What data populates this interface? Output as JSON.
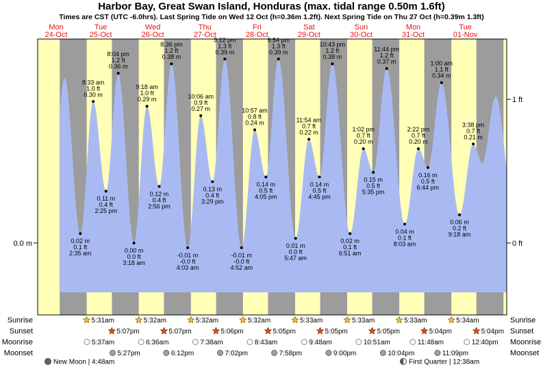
{
  "title": "Harbor Bay, Great Swan Island, Honduras (max. tidal range 0.50m 1.6ft)",
  "subtitle": "Times are CST (UTC -6.0hrs). Last Spring Tide on Wed 12 Oct (h=0.36m 1.2ft). Next Spring Tide on Thu 27 Oct (h=0.39m 1.3ft)",
  "axis": {
    "left_label": "0.0 m",
    "right_top_label": "1 ft",
    "right_bottom_label": "0 ft"
  },
  "colors": {
    "day": "#ffffb8",
    "night": "#9c9c9c",
    "tide": "#a9baf3",
    "day_label": "#e81010"
  },
  "chart_data": {
    "type": "area",
    "title": "Harbor Bay, Great Swan Island, Honduras (max. tidal range 0.50m 1.6ft)",
    "x_unit": "hours since Mon 24-Oct 00:00 CST",
    "x_range_hours": [
      6.95,
      223.06
    ],
    "ylim_m": [
      -0.105,
      0.432
    ],
    "ylabel_left": "m",
    "ylabel_right": "ft",
    "legend": false,
    "day_labels": [
      {
        "dow": "Mon",
        "date": "24-Oct"
      },
      {
        "dow": "Tue",
        "date": "25-Oct"
      },
      {
        "dow": "Wed",
        "date": "26-Oct"
      },
      {
        "dow": "Thu",
        "date": "27-Oct"
      },
      {
        "dow": "Fri",
        "date": "28-Oct"
      },
      {
        "dow": "Sat",
        "date": "29-Oct"
      },
      {
        "dow": "Sun",
        "date": "30-Oct"
      },
      {
        "dow": "Mon",
        "date": "31-Oct"
      },
      {
        "dow": "Tue",
        "date": "01-Nov"
      }
    ],
    "daylight_hours": [
      [
        6.95,
        17.117
      ],
      [
        29.517,
        41.117
      ],
      [
        53.533,
        65.117
      ],
      [
        77.533,
        89.1
      ],
      [
        101.533,
        113.083
      ],
      [
        125.55,
        137.083
      ],
      [
        149.55,
        161.083
      ],
      [
        173.55,
        185.067
      ],
      [
        197.567,
        209.067
      ],
      [
        221.567,
        223.06
      ]
    ],
    "extremes": [
      {
        "t": 13.5,
        "m": 0.1,
        "type": "low",
        "annotated": false
      },
      {
        "t": 19.33,
        "m": 0.35,
        "type": "high",
        "annotated": false
      },
      {
        "t": 26.583,
        "m": 0.02,
        "type": "low",
        "day": "Tue 25-Oct",
        "lines": [
          "0.02 m",
          "0.1 ft",
          "2:35 am"
        ]
      },
      {
        "t": 32.55,
        "m": 0.3,
        "type": "high",
        "day": "Tue 25-Oct",
        "lines": [
          "8:33 am",
          "1.0 ft",
          "0.30 m"
        ]
      },
      {
        "t": 38.417,
        "m": 0.11,
        "type": "low",
        "day": "Tue 25-Oct",
        "lines": [
          "0.11 m",
          "0.4 ft",
          "2:25 pm"
        ]
      },
      {
        "t": 44.067,
        "m": 0.36,
        "type": "high",
        "day": "Tue 25-Oct",
        "lines": [
          "8:04 pm",
          "1.2 ft",
          "0.36 m"
        ]
      },
      {
        "t": 51.3,
        "m": 0.0,
        "type": "low",
        "day": "Wed 26-Oct",
        "lines": [
          "0.00 m",
          "0.0 ft",
          "3:18 am"
        ]
      },
      {
        "t": 57.3,
        "m": 0.29,
        "type": "high",
        "day": "Wed 26-Oct",
        "lines": [
          "9:18 am",
          "1.0 ft",
          "0.29 m"
        ]
      },
      {
        "t": 62.933,
        "m": 0.12,
        "type": "low",
        "day": "Wed 26-Oct",
        "lines": [
          "0.12 m",
          "0.4 ft",
          "2:56 pm"
        ]
      },
      {
        "t": 68.6,
        "m": 0.38,
        "type": "high",
        "day": "Wed 26-Oct",
        "lines": [
          "8:36 pm",
          "1.2 ft",
          "0.38 m"
        ]
      },
      {
        "t": 76.05,
        "m": -0.01,
        "type": "low",
        "day": "Thu 27-Oct",
        "lines": [
          "-0.01 m",
          "-0.0 ft",
          "4:03 am"
        ]
      },
      {
        "t": 82.1,
        "m": 0.27,
        "type": "high",
        "day": "Thu 27-Oct",
        "lines": [
          "10:06 am",
          "0.9 ft",
          "0.27 m"
        ]
      },
      {
        "t": 87.483,
        "m": 0.13,
        "type": "low",
        "day": "Thu 27-Oct",
        "lines": [
          "0.13 m",
          "0.4 ft",
          "3:29 pm"
        ]
      },
      {
        "t": 93.2,
        "m": 0.39,
        "type": "high",
        "day": "Thu 27-Oct",
        "lines": [
          "9:12 pm",
          "1.3 ft",
          "0.39 m"
        ]
      },
      {
        "t": 100.867,
        "m": -0.01,
        "type": "low",
        "day": "Fri 28-Oct",
        "lines": [
          "-0.01 m",
          "-0.0 ft",
          "4:52 am"
        ]
      },
      {
        "t": 106.95,
        "m": 0.24,
        "type": "high",
        "day": "Fri 28-Oct",
        "lines": [
          "10:57 am",
          "0.8 ft",
          "0.24 m"
        ]
      },
      {
        "t": 112.083,
        "m": 0.14,
        "type": "low",
        "day": "Fri 28-Oct",
        "lines": [
          "0.14 m",
          "0.5 ft",
          "4:05 pm"
        ]
      },
      {
        "t": 117.9,
        "m": 0.39,
        "type": "high",
        "day": "Fri 28-Oct",
        "lines": [
          "9:54 pm",
          "1.3 ft",
          "0.39 m"
        ]
      },
      {
        "t": 125.783,
        "m": 0.01,
        "type": "low",
        "day": "Sat 29-Oct",
        "lines": [
          "0.01 m",
          "0.0 ft",
          "5:47 am"
        ]
      },
      {
        "t": 131.9,
        "m": 0.22,
        "type": "high",
        "day": "Sat 29-Oct",
        "lines": [
          "11:54 am",
          "0.7 ft",
          "0.22 m"
        ]
      },
      {
        "t": 136.75,
        "m": 0.14,
        "type": "low",
        "day": "Sat 29-Oct",
        "lines": [
          "0.14 m",
          "0.5 ft",
          "4:45 pm"
        ]
      },
      {
        "t": 142.717,
        "m": 0.38,
        "type": "high",
        "day": "Sat 29-Oct",
        "lines": [
          "10:43 pm",
          "1.2 ft",
          "0.38 m"
        ]
      },
      {
        "t": 150.85,
        "m": 0.02,
        "type": "low",
        "day": "Sun 30-Oct",
        "lines": [
          "0.02 m",
          "0.1 ft",
          "6:51 am"
        ]
      },
      {
        "t": 157.033,
        "m": 0.2,
        "type": "high",
        "day": "Sun 30-Oct",
        "lines": [
          "1:02 pm",
          "0.7 ft",
          "0.20 m"
        ]
      },
      {
        "t": 161.583,
        "m": 0.15,
        "type": "low",
        "day": "Sun 30-Oct",
        "lines": [
          "0.15 m",
          "0.5 ft",
          "5:35 pm"
        ]
      },
      {
        "t": 167.733,
        "m": 0.37,
        "type": "high",
        "day": "Sun 30-Oct",
        "lines": [
          "11:44 pm",
          "1.2 ft",
          "0.37 m"
        ]
      },
      {
        "t": 176.05,
        "m": 0.04,
        "type": "low",
        "day": "Mon 31-Oct",
        "lines": [
          "0.04 m",
          "0.1 ft",
          "8:03 am"
        ]
      },
      {
        "t": 182.367,
        "m": 0.2,
        "type": "high",
        "day": "Mon 31-Oct",
        "lines": [
          "2:22 pm",
          "0.7 ft",
          "0.20 m"
        ]
      },
      {
        "t": 186.733,
        "m": 0.16,
        "type": "low",
        "day": "Mon 31-Oct",
        "lines": [
          "0.16 m",
          "0.5 ft",
          "6:44 pm"
        ]
      },
      {
        "t": 193.0,
        "m": 0.34,
        "type": "high",
        "day": "Tue 01-Nov",
        "lines": [
          "1:00 am",
          "1.1 ft",
          "0.34 m"
        ]
      },
      {
        "t": 201.3,
        "m": 0.06,
        "type": "low",
        "day": "Tue 01-Nov",
        "lines": [
          "0.06 m",
          "0.2 ft",
          "9:18 am"
        ]
      },
      {
        "t": 207.633,
        "m": 0.21,
        "type": "high",
        "day": "Tue 01-Nov",
        "lines": [
          "3:38 pm",
          "0.7 ft",
          "0.21 m"
        ]
      },
      {
        "t": 211.75,
        "m": 0.17,
        "type": "low",
        "annotated": false
      },
      {
        "t": 218.0,
        "m": 0.31,
        "type": "high",
        "annotated": false
      },
      {
        "t": 226.33,
        "m": 0.07,
        "type": "low",
        "annotated": false
      }
    ],
    "astro_rows": [
      {
        "name": "Sunrise",
        "icon": "sunrise-star-icon",
        "shape": "star",
        "fill": "#f6c81c",
        "stroke": "#9a6a00",
        "events": [
          {
            "t": 29.517,
            "label": "5:31am"
          },
          {
            "t": 53.533,
            "label": "5:32am"
          },
          {
            "t": 77.533,
            "label": "5:32am"
          },
          {
            "t": 101.533,
            "label": "5:32am"
          },
          {
            "t": 125.55,
            "label": "5:33am"
          },
          {
            "t": 149.55,
            "label": "5:33am"
          },
          {
            "t": 173.55,
            "label": "5:33am"
          },
          {
            "t": 197.567,
            "label": "5:34am"
          }
        ]
      },
      {
        "name": "Sunset",
        "icon": "sunset-star-icon",
        "shape": "star",
        "fill": "#e8521c",
        "stroke": "#7d2200",
        "events": [
          {
            "t": 41.117,
            "label": "5:07pm"
          },
          {
            "t": 65.117,
            "label": "5:07pm"
          },
          {
            "t": 89.1,
            "label": "5:06pm"
          },
          {
            "t": 113.083,
            "label": "5:05pm"
          },
          {
            "t": 137.083,
            "label": "5:05pm"
          },
          {
            "t": 161.083,
            "label": "5:05pm"
          },
          {
            "t": 185.067,
            "label": "5:04pm"
          },
          {
            "t": 209.067,
            "label": "5:04pm"
          }
        ]
      },
      {
        "name": "Moonrise",
        "icon": "moonrise-icon",
        "shape": "circle",
        "fill": "#ffffe2",
        "stroke": "#8a8a8a",
        "events": [
          {
            "t": 29.617,
            "label": "5:37am"
          },
          {
            "t": 54.6,
            "label": "6:36am"
          },
          {
            "t": 79.633,
            "label": "7:38am"
          },
          {
            "t": 104.717,
            "label": "8:43am"
          },
          {
            "t": 129.8,
            "label": "9:48am"
          },
          {
            "t": 154.85,
            "label": "10:51am"
          },
          {
            "t": 179.8,
            "label": "11:48am"
          },
          {
            "t": 204.667,
            "label": "12:40pm"
          }
        ]
      },
      {
        "name": "Moonset",
        "icon": "moonset-icon",
        "shape": "circle",
        "fill": "#a2a2a2",
        "stroke": "#636363",
        "events": [
          {
            "t": 41.45,
            "label": "5:27pm"
          },
          {
            "t": 66.2,
            "label": "6:12pm"
          },
          {
            "t": 91.033,
            "label": "7:02pm"
          },
          {
            "t": 115.967,
            "label": "7:58pm"
          },
          {
            "t": 141.0,
            "label": "9:00pm"
          },
          {
            "t": 166.067,
            "label": "10:04pm"
          },
          {
            "t": 191.15,
            "label": "11:09pm"
          }
        ]
      }
    ],
    "moon_phases": [
      {
        "name": "New Moon",
        "time": "4:48am"
      },
      {
        "name": "First Quarter",
        "time": "12:38am"
      }
    ]
  }
}
